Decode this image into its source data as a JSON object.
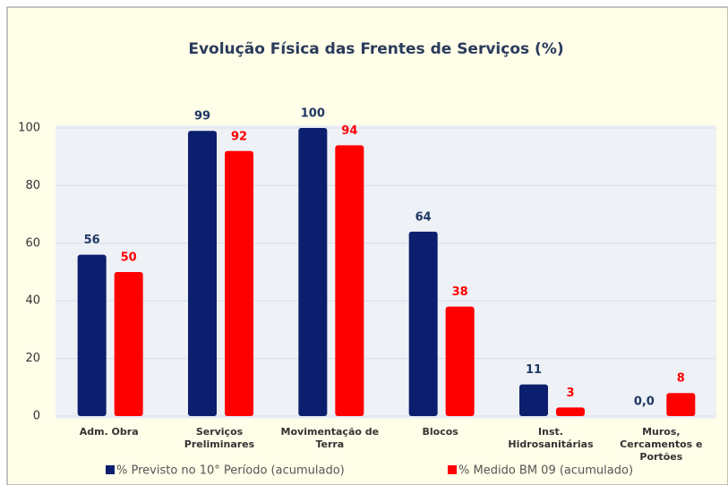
{
  "chart_data": {
    "type": "bar",
    "title": "Evolução Física das Frentes de Serviços (%)",
    "categories": [
      "Adm. Obra",
      "Serviços Preliminares",
      "Movimentação de Terra",
      "Blocos",
      "Inst. Hidrosanitárias",
      "Muros, Cercamentos e Portões"
    ],
    "series": [
      {
        "name": "% Previsto no 10° Período (acumulado)",
        "color": "#0c1f6e",
        "label_color": "#1f3864",
        "values": [
          56,
          99,
          100,
          64,
          11,
          0
        ],
        "value_labels": [
          "56",
          "99",
          "100",
          "64",
          "11",
          "0,0"
        ]
      },
      {
        "name": "% Medido BM 09 (acumulado)",
        "color": "#ff0000",
        "label_color": "#ff0000",
        "values": [
          50,
          92,
          94,
          38,
          3,
          8
        ]
      }
    ],
    "ylim": [
      0,
      100
    ],
    "yticks": [
      0,
      20,
      40,
      60,
      80,
      100
    ],
    "grid": true
  }
}
